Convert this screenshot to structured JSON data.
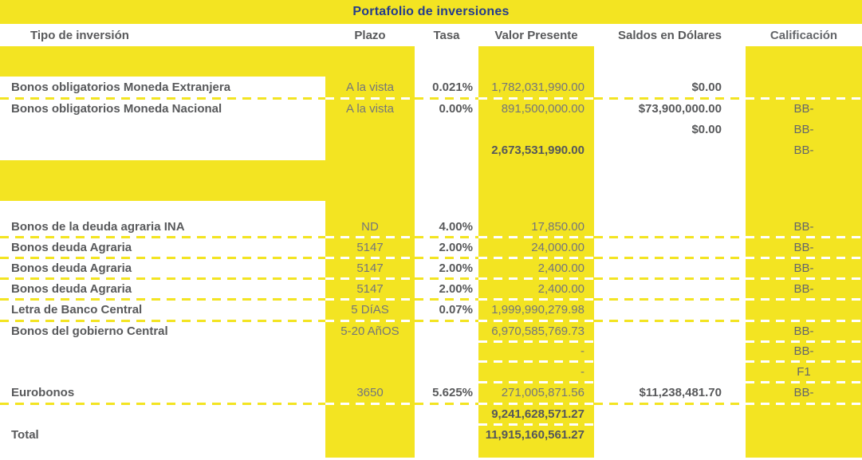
{
  "title": "Portafolio de inversiones",
  "columns": [
    "Tipo de inversión",
    "Plazo",
    "Tasa",
    "Valor Presente",
    "Saldos en Dólares",
    "Calificación"
  ],
  "colors": {
    "highlight_yellow": "#f3e422",
    "title_blue": "#243c8c",
    "text_dark_gray": "#58595b",
    "text_value_gray": "#74767a"
  },
  "rows": [
    {
      "tipo": "Bonos obligatorios Moneda Extranjera",
      "plazo": "A la vista",
      "tasa": "0.021%",
      "valor": "1,782,031,990.00",
      "saldos": "$0.00",
      "calif": ""
    },
    {
      "tipo": "Bonos obligatorios Moneda Nacional",
      "plazo": "A la vista",
      "tasa": "0.00%",
      "valor": "891,500,000.00",
      "saldos": "$73,900,000.00",
      "calif": "BB-"
    },
    {
      "tipo": "",
      "plazo": "",
      "tasa": "",
      "valor": "",
      "saldos": "$0.00",
      "calif": "BB-"
    },
    {
      "tipo": "",
      "plazo": "",
      "tasa": "",
      "valor": "2,673,531,990.00",
      "saldos": "",
      "calif": "BB-"
    },
    {
      "tipo": "Bonos de la deuda agraria INA",
      "plazo": "ND",
      "tasa": "4.00%",
      "valor": "17,850.00",
      "saldos": "",
      "calif": "BB-"
    },
    {
      "tipo": "Bonos deuda Agraria",
      "plazo": "5147",
      "tasa": "2.00%",
      "valor": "24,000.00",
      "saldos": "",
      "calif": "BB-"
    },
    {
      "tipo": "Bonos deuda Agraria",
      "plazo": "5147",
      "tasa": "2.00%",
      "valor": "2,400.00",
      "saldos": "",
      "calif": "BB-"
    },
    {
      "tipo": "Bonos deuda Agraria",
      "plazo": "5147",
      "tasa": "2.00%",
      "valor": "2,400.00",
      "saldos": "",
      "calif": "BB-"
    },
    {
      "tipo": "Letra de Banco Central",
      "plazo": "5 DíAS",
      "tasa": "0.07%",
      "valor": "1,999,990,279.98",
      "saldos": "",
      "calif": ""
    },
    {
      "tipo": "Bonos del gobierno Central",
      "plazo": "5-20 AñOS",
      "tasa": "",
      "valor": "6,970,585,769.73",
      "saldos": "",
      "calif": "BB-"
    },
    {
      "tipo": "",
      "plazo": "",
      "tasa": "",
      "valor": "-",
      "saldos": "",
      "calif": "BB-"
    },
    {
      "tipo": "",
      "plazo": "",
      "tasa": "",
      "valor": "-",
      "saldos": "",
      "calif": "F1"
    },
    {
      "tipo": "Eurobonos",
      "plazo": "3650",
      "tasa": "5.625%",
      "valor": "271,005,871.56",
      "saldos": "$11,238,481.70",
      "calif": "BB-"
    },
    {
      "tipo": "",
      "plazo": "",
      "tasa": "",
      "valor": "9,241,628,571.27",
      "saldos": "",
      "calif": ""
    },
    {
      "tipo": "Total",
      "plazo": "",
      "tasa": "",
      "valor": "11,915,160,561.27",
      "saldos": "",
      "calif": ""
    }
  ]
}
